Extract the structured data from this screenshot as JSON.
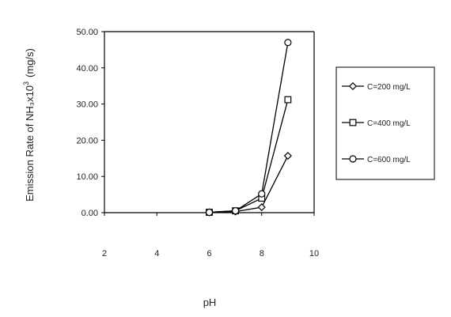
{
  "chart_data": {
    "type": "line",
    "xlabel": "pH",
    "ylabel": "Emission Rate of NH₃x10",
    "ylabel_superscript": "3",
    "ylabel_unit": "(mg/s)",
    "xlim": [
      2,
      10
    ],
    "ylim": [
      0,
      50
    ],
    "x_ticks": [
      "2",
      "4",
      "6",
      "8",
      "10"
    ],
    "y_ticks": [
      "0.00",
      "10.00",
      "20.00",
      "30.00",
      "40.00",
      "50.00"
    ],
    "grid": false,
    "legend_position": "right",
    "series": [
      {
        "name": "C=200 mg/L",
        "marker": "diamond",
        "x": [
          6,
          7,
          8,
          9
        ],
        "y": [
          0.1,
          0.3,
          1.5,
          15.7
        ]
      },
      {
        "name": "C=400 mg/L",
        "marker": "square",
        "x": [
          6,
          7,
          8,
          9
        ],
        "y": [
          0.1,
          0.5,
          4.0,
          31.2
        ]
      },
      {
        "name": "C=600 mg/L",
        "marker": "circle",
        "x": [
          6,
          7,
          8,
          9
        ],
        "y": [
          0.1,
          0.5,
          5.2,
          47.0
        ]
      }
    ]
  }
}
